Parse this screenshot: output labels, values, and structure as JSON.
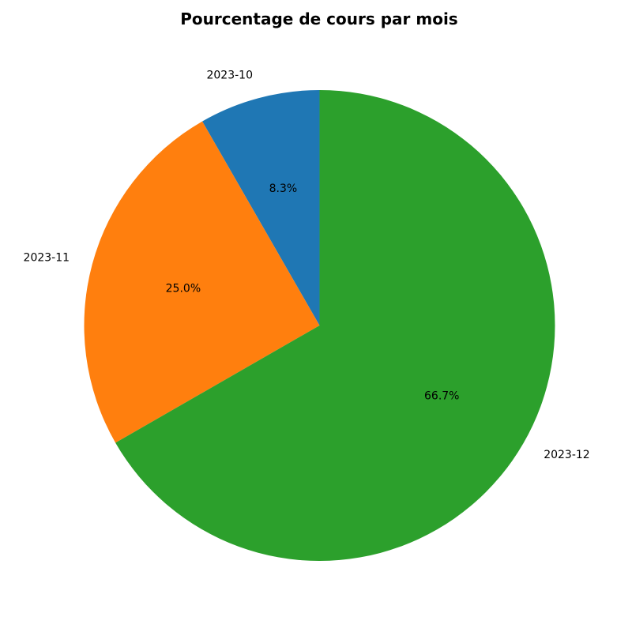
{
  "chart_data": {
    "type": "pie",
    "title": "Pourcentage de cours par mois",
    "start_angle_deg": 90,
    "direction": "counterclockwise",
    "slices": [
      {
        "label": "2023-10",
        "value": 8.3,
        "pct_text": "8.3%",
        "color": "#1f77b4"
      },
      {
        "label": "2023-11",
        "value": 25.0,
        "pct_text": "25.0%",
        "color": "#ff7f0e"
      },
      {
        "label": "2023-12",
        "value": 66.7,
        "pct_text": "66.7%",
        "color": "#2ca02c"
      }
    ]
  }
}
